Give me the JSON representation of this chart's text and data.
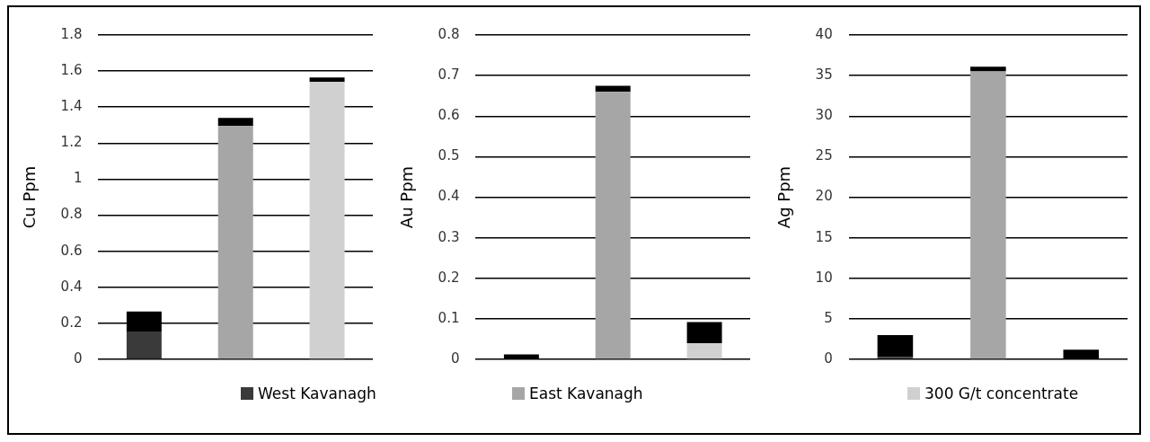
{
  "chart_data": [
    {
      "type": "bar",
      "ylabel": "Cu Ppm",
      "categories": [
        null,
        null,
        null
      ],
      "stacked": true,
      "grid": "y",
      "legend": "bottom",
      "ylim": [
        0,
        1.8
      ],
      "yticks": [
        0,
        0.2,
        0.4,
        0.6,
        0.8,
        1,
        1.2,
        1.4,
        1.6,
        1.8
      ],
      "series": [
        {
          "name": "West Kavanagh",
          "color": "#3a3a3a",
          "values": [
            0.155,
            null,
            null
          ]
        },
        {
          "name": "East Kavanagh",
          "color": "#a6a6a6",
          "values": [
            null,
            1.295,
            null
          ]
        },
        {
          "name": "300 G/t concentrate",
          "color": "#d0d0d0",
          "values": [
            null,
            null,
            1.54
          ]
        },
        {
          "color": "#000000",
          "values": [
            0.11,
            0.045,
            0.025
          ]
        }
      ]
    },
    {
      "type": "bar",
      "ylabel": "Au Ppm",
      "categories": [
        null,
        null,
        null
      ],
      "stacked": true,
      "grid": "y",
      "ylim": [
        0,
        0.8
      ],
      "yticks": [
        0,
        0.1,
        0.2,
        0.3,
        0.4,
        0.5,
        0.6,
        0.7,
        0.8
      ],
      "series": [
        {
          "color": "#3a3a3a",
          "values": [
            0,
            null,
            null
          ]
        },
        {
          "color": "#a6a6a6",
          "values": [
            null,
            0.66,
            null
          ]
        },
        {
          "color": "#d0d0d0",
          "values": [
            null,
            null,
            0.04
          ]
        },
        {
          "color": "#000000",
          "values": [
            0.012,
            0.015,
            0.052
          ]
        }
      ]
    },
    {
      "type": "bar",
      "ylabel": "Ag Ppm",
      "categories": [
        null,
        null,
        null
      ],
      "stacked": true,
      "grid": "y",
      "ylim": [
        0,
        40
      ],
      "yticks": [
        0,
        5,
        10,
        15,
        20,
        25,
        30,
        35,
        40
      ],
      "series": [
        {
          "color": "#3a3a3a",
          "values": [
            0.3,
            null,
            null
          ]
        },
        {
          "color": "#a6a6a6",
          "values": [
            null,
            35.5,
            null
          ]
        },
        {
          "color": "#d0d0d0",
          "values": [
            null,
            null,
            0
          ]
        },
        {
          "color": "#000000",
          "values": [
            2.7,
            0.6,
            1.2
          ]
        }
      ]
    }
  ]
}
